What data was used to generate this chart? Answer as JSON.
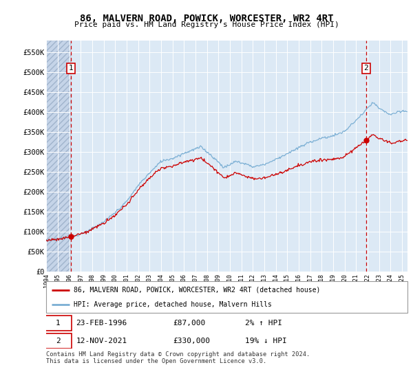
{
  "title": "86, MALVERN ROAD, POWICK, WORCESTER, WR2 4RT",
  "subtitle": "Price paid vs. HM Land Registry's House Price Index (HPI)",
  "bg_color": "#dce9f5",
  "hatch_color": "#c5d4e8",
  "line1_color": "#cc0000",
  "line2_color": "#7bafd4",
  "ylim": [
    0,
    580000
  ],
  "yticks": [
    0,
    50000,
    100000,
    150000,
    200000,
    250000,
    300000,
    350000,
    400000,
    450000,
    500000,
    550000
  ],
  "ytick_labels": [
    "£0",
    "£50K",
    "£100K",
    "£150K",
    "£200K",
    "£250K",
    "£300K",
    "£350K",
    "£400K",
    "£450K",
    "£500K",
    "£550K"
  ],
  "xmin_year": 1994,
  "xmax_year": 2025.5,
  "xticks": [
    1994,
    1995,
    1996,
    1997,
    1998,
    1999,
    2000,
    2001,
    2002,
    2003,
    2004,
    2005,
    2006,
    2007,
    2008,
    2009,
    2010,
    2011,
    2012,
    2013,
    2014,
    2015,
    2016,
    2017,
    2018,
    2019,
    2020,
    2021,
    2022,
    2023,
    2024,
    2025
  ],
  "purchase1_year": 1996.15,
  "purchase1_price": 87000,
  "purchase2_year": 2021.87,
  "purchase2_price": 330000,
  "legend_line1": "86, MALVERN ROAD, POWICK, WORCESTER, WR2 4RT (detached house)",
  "legend_line2": "HPI: Average price, detached house, Malvern Hills",
  "note1_date": "23-FEB-1996",
  "note1_price": "£87,000",
  "note1_hpi": "2% ↑ HPI",
  "note2_date": "12-NOV-2021",
  "note2_price": "£330,000",
  "note2_hpi": "19% ↓ HPI",
  "footer": "Contains HM Land Registry data © Crown copyright and database right 2024.\nThis data is licensed under the Open Government Licence v3.0."
}
